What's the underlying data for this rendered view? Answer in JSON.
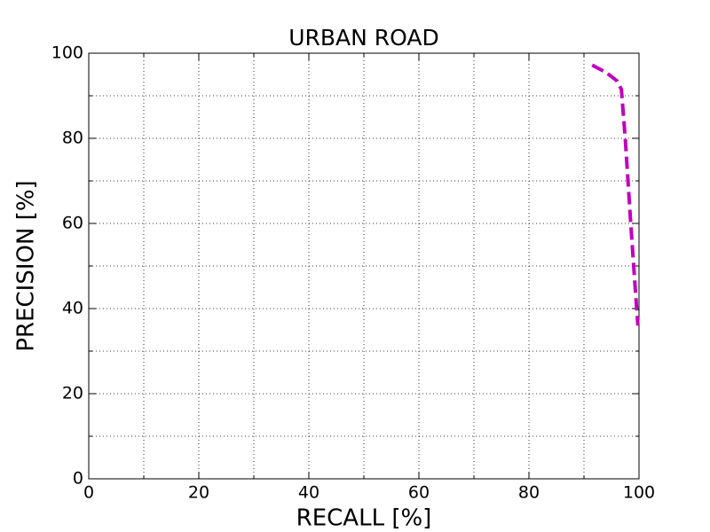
{
  "chart_data": {
    "type": "line",
    "title": "URBAN ROAD",
    "xlabel": "RECALL [%]",
    "ylabel": "PRECISION [%]",
    "x": [
      91.5,
      94,
      96,
      96.8,
      97.5,
      98.5,
      99.3,
      99.8
    ],
    "series": [
      {
        "color": "#bf00bf",
        "values": [
          97.2,
          95.5,
          93.5,
          91.5,
          80,
          60,
          45,
          36
        ]
      }
    ],
    "xlim": [
      0,
      100
    ],
    "ylim": [
      0,
      100
    ],
    "xticks": [
      0,
      20,
      40,
      60,
      80,
      100
    ],
    "yticks": [
      0,
      20,
      40,
      60,
      80,
      100
    ],
    "xminorticks": [
      10,
      30,
      50,
      70,
      90
    ],
    "yminorticks": [
      10,
      30,
      50,
      70,
      90
    ],
    "grid": true,
    "line_style": "dashed"
  }
}
